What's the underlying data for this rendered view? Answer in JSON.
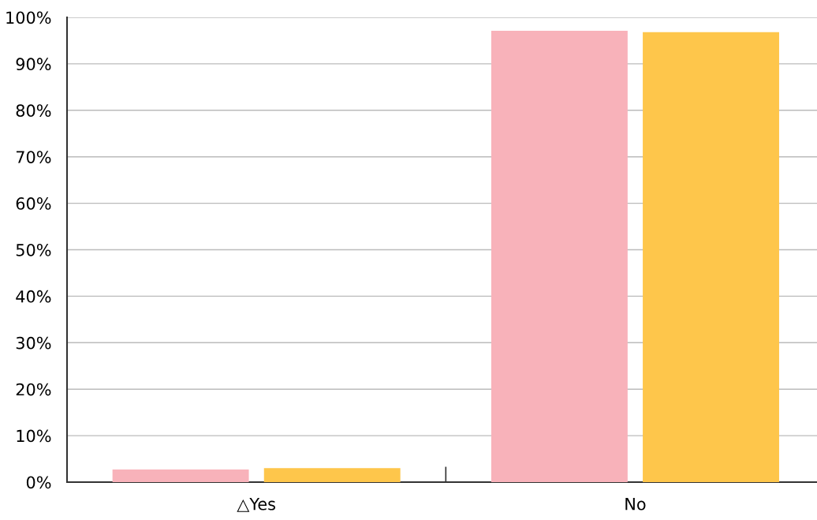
{
  "chart_data": {
    "type": "bar",
    "categories": [
      "△Yes",
      "No"
    ],
    "series": [
      {
        "color": "#f8b2ba",
        "values": [
          2.7,
          97.1
        ]
      },
      {
        "color": "#fec64b",
        "values": [
          3.0,
          96.8
        ]
      }
    ],
    "ylim": [
      0,
      100
    ],
    "yticks": [
      {
        "value": 0,
        "label": "0%"
      },
      {
        "value": 10,
        "label": "10%"
      },
      {
        "value": 20,
        "label": "20%"
      },
      {
        "value": 30,
        "label": "30%"
      },
      {
        "value": 40,
        "label": "40%"
      },
      {
        "value": 50,
        "label": "50%"
      },
      {
        "value": 60,
        "label": "60%"
      },
      {
        "value": 70,
        "label": "70%"
      },
      {
        "value": 80,
        "label": "80%"
      },
      {
        "value": 90,
        "label": "90%"
      },
      {
        "value": 100,
        "label": "100%"
      }
    ],
    "grid": "y",
    "legend": false
  }
}
